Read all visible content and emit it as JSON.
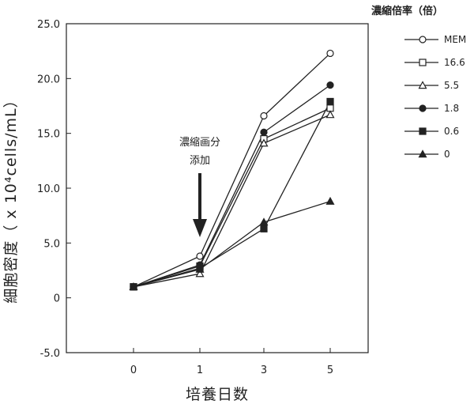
{
  "chart_data": {
    "type": "line",
    "categories": [
      "0",
      "1",
      "3",
      "5"
    ],
    "ylim": [
      -5.0,
      25.0
    ],
    "yticks": [
      "25.0",
      "20.0",
      "15.0",
      "10.0",
      "5.0",
      "0",
      "-5.0"
    ],
    "xlabel": "培養日数",
    "ylabel": "細胞密度（ x 10⁴cells/mL）",
    "legend": {
      "title": "濃縮倍率（倍）",
      "placement": "right"
    },
    "annotation": {
      "lines": [
        "濃縮画分",
        "添加"
      ],
      "arrow_at_category": "1"
    },
    "grid": false,
    "series": [
      {
        "name": "MEM",
        "marker": "circle-open",
        "values": [
          1.0,
          3.8,
          16.6,
          22.3
        ]
      },
      {
        "name": "16.6",
        "marker": "square-open",
        "values": [
          1.0,
          2.9,
          14.5,
          17.3
        ]
      },
      {
        "name": "5.5",
        "marker": "triangle-open",
        "values": [
          1.0,
          2.2,
          14.1,
          16.7
        ]
      },
      {
        "name": "1.8",
        "marker": "circle-filled",
        "values": [
          1.0,
          3.0,
          15.1,
          19.4
        ]
      },
      {
        "name": "0.6",
        "marker": "square-filled",
        "values": [
          1.0,
          2.7,
          6.3,
          17.9
        ]
      },
      {
        "name": "0",
        "marker": "triangle-filled",
        "values": [
          1.0,
          2.6,
          6.9,
          8.8
        ]
      }
    ],
    "colors": {
      "line": "#222222",
      "open_fill": "#ffffff",
      "filled": "#222222"
    }
  }
}
